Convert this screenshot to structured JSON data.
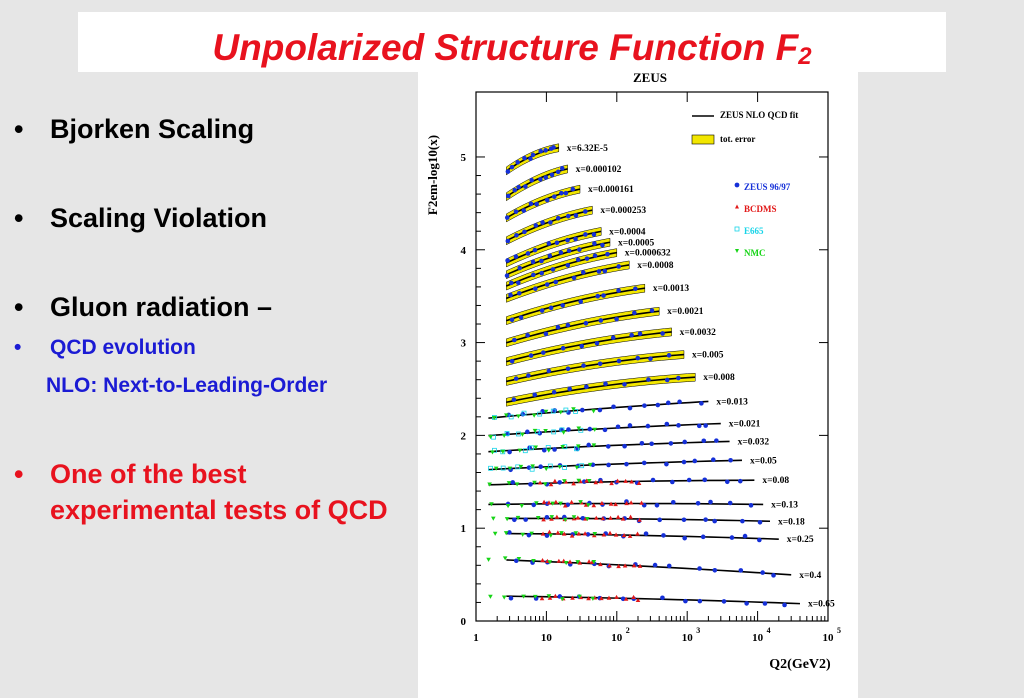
{
  "slide": {
    "title_main": "Unpolarized Structure Function F",
    "title_sub": "2",
    "bullets": [
      {
        "text": "Bjorken Scaling",
        "style": "big"
      },
      {
        "text": "Scaling Violation",
        "style": "big"
      },
      {
        "text": "Gluon radiation –",
        "style": "big"
      },
      {
        "text": "QCD evolution",
        "style": "blue"
      },
      {
        "text": "NLO: Next-to-Leading-Order",
        "style": "blue-nobullet"
      },
      {
        "text": "One of the best experimental tests of QCD",
        "style": "red"
      }
    ],
    "bullet_symbol": "•"
  },
  "colors": {
    "title": "#e8121e",
    "accent_blue": "#1b1bd4",
    "zeus": "#1530d8",
    "bcdms": "#e21818",
    "e665": "#17d4e8",
    "nmc": "#16d416",
    "error_band": "#f2e600"
  },
  "chart_data": {
    "type": "scatter",
    "title": "ZEUS",
    "ylabel": "F2em-log10(x)",
    "xlabel": "Q2(GeV2)",
    "x_scale": "log",
    "xlim": [
      1,
      100000
    ],
    "ylim": [
      0,
      5.7
    ],
    "x_ticks": [
      1,
      10,
      100,
      1000,
      10000,
      100000
    ],
    "x_tick_labels": [
      "1",
      "10",
      "10",
      "10",
      "10",
      "10"
    ],
    "x_tick_exponents": [
      "",
      "",
      "2",
      "3",
      "4",
      "5"
    ],
    "y_ticks": [
      0,
      1,
      2,
      3,
      4,
      5
    ],
    "y_tick_labels": [
      "0",
      "1",
      "2",
      "3",
      "4",
      "5"
    ],
    "legend": [
      {
        "label": "ZEUS NLO QCD fit",
        "marker": "line"
      },
      {
        "label": "tot. error",
        "marker": "band"
      },
      {
        "label": "ZEUS 96/97",
        "marker": "circle"
      },
      {
        "label": "BCDMS",
        "marker": "triangle-up"
      },
      {
        "label": "E665",
        "marker": "square-open"
      },
      {
        "label": "NMC",
        "marker": "triangle-down"
      }
    ],
    "series": [
      {
        "x_label": "x=6.32E-5",
        "q2": [
          2.7,
          15
        ],
        "f2": [
          0.65,
          0.9
        ],
        "experiments": [
          "ZEUS 96/97"
        ]
      },
      {
        "x_label": "x=0.000102",
        "q2": [
          2.7,
          20
        ],
        "f2": [
          0.58,
          0.88
        ],
        "experiments": [
          "ZEUS 96/97"
        ]
      },
      {
        "x_label": "x=0.000161",
        "q2": [
          2.7,
          30
        ],
        "f2": [
          0.55,
          0.86
        ],
        "experiments": [
          "ZEUS 96/97"
        ]
      },
      {
        "x_label": "x=0.000253",
        "q2": [
          2.7,
          45
        ],
        "f2": [
          0.5,
          0.83
        ],
        "experiments": [
          "ZEUS 96/97"
        ]
      },
      {
        "x_label": "x=0.0004",
        "q2": [
          2.7,
          60
        ],
        "f2": [
          0.46,
          0.8
        ],
        "experiments": [
          "ZEUS 96/97"
        ]
      },
      {
        "x_label": "x=0.0005",
        "q2": [
          2.7,
          80
        ],
        "f2": [
          0.43,
          0.78
        ],
        "experiments": [
          "ZEUS 96/97"
        ]
      },
      {
        "x_label": "x=0.000632",
        "q2": [
          2.7,
          100
        ],
        "f2": [
          0.41,
          0.77
        ],
        "experiments": [
          "ZEUS 96/97"
        ]
      },
      {
        "x_label": "x=0.0008",
        "q2": [
          2.7,
          150
        ],
        "f2": [
          0.38,
          0.74
        ],
        "experiments": [
          "ZEUS 96/97"
        ]
      },
      {
        "x_label": "x=0.0013",
        "q2": [
          2.7,
          250
        ],
        "f2": [
          0.35,
          0.7
        ],
        "experiments": [
          "ZEUS 96/97"
        ]
      },
      {
        "x_label": "x=0.0021",
        "q2": [
          2.7,
          400
        ],
        "f2": [
          0.32,
          0.66
        ],
        "experiments": [
          "ZEUS 96/97"
        ]
      },
      {
        "x_label": "x=0.0032",
        "q2": [
          2.7,
          600
        ],
        "f2": [
          0.3,
          0.62
        ],
        "experiments": [
          "ZEUS 96/97"
        ]
      },
      {
        "x_label": "x=0.005",
        "q2": [
          2.7,
          900
        ],
        "f2": [
          0.28,
          0.57
        ],
        "experiments": [
          "ZEUS 96/97"
        ]
      },
      {
        "x_label": "x=0.008",
        "q2": [
          2.7,
          1300
        ],
        "f2": [
          0.26,
          0.53
        ],
        "experiments": [
          "ZEUS 96/97"
        ]
      },
      {
        "x_label": "x=0.013",
        "q2": [
          1.5,
          2000
        ],
        "f2": [
          0.3,
          0.48
        ],
        "experiments": [
          "ZEUS 96/97",
          "E665",
          "NMC"
        ]
      },
      {
        "x_label": "x=0.021",
        "q2": [
          1.5,
          3000
        ],
        "f2": [
          0.32,
          0.45
        ],
        "experiments": [
          "ZEUS 96/97",
          "E665",
          "NMC"
        ]
      },
      {
        "x_label": "x=0.032",
        "q2": [
          1.5,
          4000
        ],
        "f2": [
          0.33,
          0.44
        ],
        "experiments": [
          "ZEUS 96/97",
          "E665",
          "NMC"
        ]
      },
      {
        "x_label": "x=0.05",
        "q2": [
          1.5,
          6000
        ],
        "f2": [
          0.33,
          0.43
        ],
        "experiments": [
          "ZEUS 96/97",
          "E665",
          "NMC"
        ]
      },
      {
        "x_label": "x=0.08",
        "q2": [
          1.5,
          9000
        ],
        "f2": [
          0.37,
          0.42
        ],
        "experiments": [
          "ZEUS 96/97",
          "BCDMS",
          "NMC"
        ]
      },
      {
        "x_label": "x=0.13",
        "q2": [
          1.5,
          12000
        ],
        "f2": [
          0.37,
          0.37
        ],
        "experiments": [
          "ZEUS 96/97",
          "BCDMS",
          "NMC"
        ]
      },
      {
        "x_label": "x=0.18",
        "q2": [
          2.7,
          15000
        ],
        "f2": [
          0.36,
          0.33
        ],
        "experiments": [
          "ZEUS 96/97",
          "BCDMS",
          "NMC"
        ]
      },
      {
        "x_label": "x=0.25",
        "q2": [
          2.7,
          20000
        ],
        "f2": [
          0.34,
          0.28
        ],
        "experiments": [
          "ZEUS 96/97",
          "BCDMS",
          "NMC"
        ]
      },
      {
        "x_label": "x=0.4",
        "q2": [
          2.7,
          30000
        ],
        "f2": [
          0.26,
          0.1
        ],
        "experiments": [
          "ZEUS 96/97",
          "BCDMS",
          "NMC"
        ]
      },
      {
        "x_label": "x=0.65",
        "q2": [
          2.7,
          40000
        ],
        "f2": [
          0.08,
          0.0
        ],
        "experiments": [
          "ZEUS 96/97",
          "BCDMS",
          "NMC"
        ]
      }
    ]
  }
}
